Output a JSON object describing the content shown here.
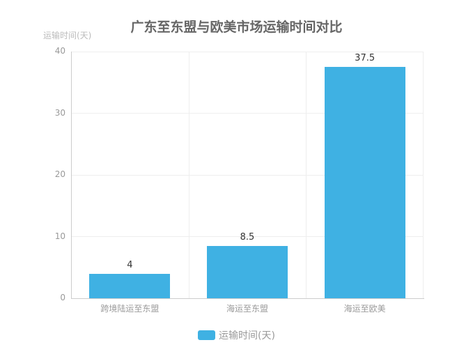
{
  "chart_data": {
    "type": "bar",
    "title": "广东至东盟与欧美市场运输时间对比",
    "xlabel": "",
    "ylabel": "运输时间(天)",
    "categories": [
      "跨境陆运至东盟",
      "海运至东盟",
      "海运至欧美"
    ],
    "series": [
      {
        "name": "运输时间(天)",
        "values": [
          4,
          8.5,
          37.5
        ],
        "color": "#3fb1e3"
      }
    ],
    "value_labels": [
      "4",
      "8.5",
      "37.5"
    ],
    "ylim": [
      0,
      40
    ],
    "yticks": [
      "0",
      "10",
      "20",
      "30",
      "40"
    ],
    "grid": true,
    "legend_position": "bottom"
  },
  "colors": {
    "bar": "#3fb1e3",
    "title": "#666666",
    "axis_text": "#999999",
    "grid": "#eeeeee"
  }
}
